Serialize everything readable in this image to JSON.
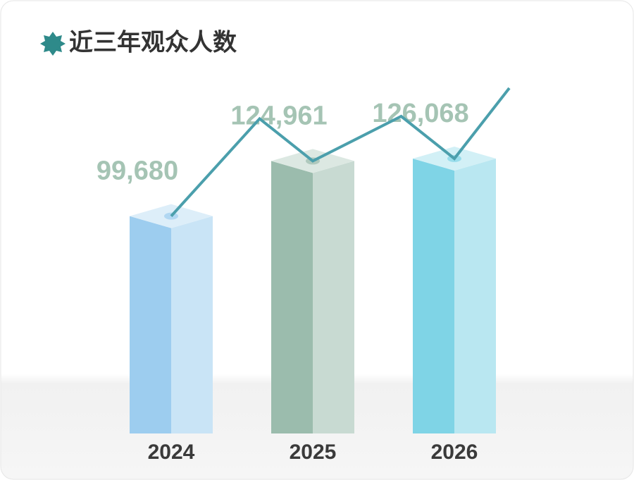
{
  "chart_data": {
    "type": "bar",
    "title": "近三年观众人数",
    "categories": [
      "2024",
      "2025",
      "2026"
    ],
    "values": [
      99680,
      124961,
      126068
    ],
    "value_labels": [
      "99,680",
      "124,961",
      "126,068"
    ],
    "colors": [
      "#9dcdef",
      "#9bbcad",
      "#7fd4e6"
    ]
  }
}
